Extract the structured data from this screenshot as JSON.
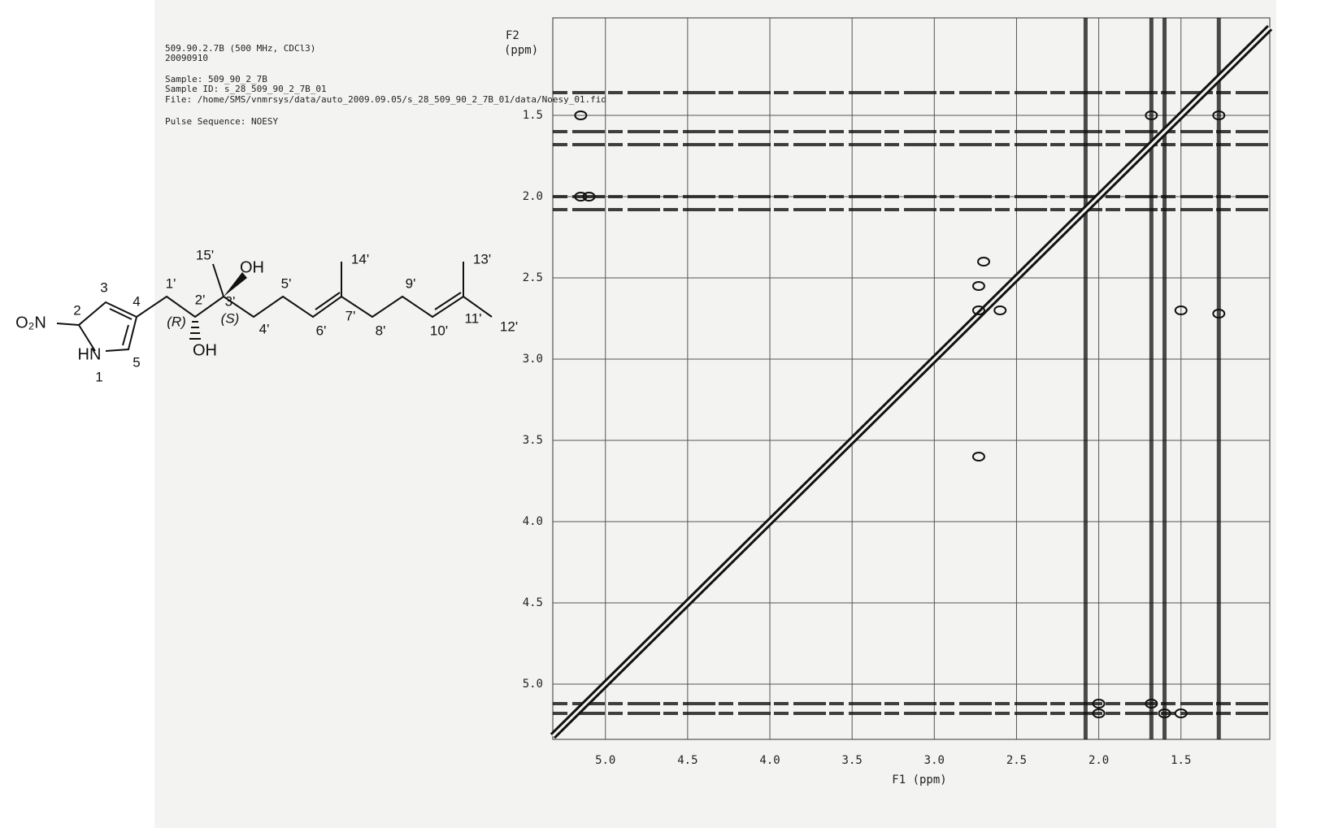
{
  "chart_data": {
    "type": "noesy",
    "header": [
      "509.90.2.7B (500 MHz, CDCl3)",
      "20090910",
      "Sample: 509_90_2_7B",
      "Sample ID: s_28_509_90_2_7B_01",
      "File: /home/SMS/vnmrsys/data/auto_2009.09.05/s_28_509_90_2_7B_01/data/Noesy_01.fid",
      "Pulse Sequence: NOESY"
    ],
    "y_label": [
      "F2",
      "(ppm)"
    ],
    "x_label": "F1 (ppm)",
    "xlim": [
      5.32,
      0.96
    ],
    "ylim": [
      0.9,
      5.34
    ],
    "xticks": [
      {
        "value": 5,
        "label": "5.0"
      },
      4.5,
      {
        "value": 4,
        "label": "4.0"
      },
      3.5,
      {
        "value": 3,
        "label": "3.0"
      },
      2.5,
      {
        "value": 2,
        "label": "2.0"
      },
      1.5
    ],
    "yticks": [
      1.5,
      {
        "value": 2,
        "label": "2.0"
      },
      2.5,
      {
        "value": 3,
        "label": "3.0"
      },
      3.5,
      {
        "value": 4,
        "label": "4.0"
      },
      4.5,
      {
        "value": 5,
        "label": "5.0"
      }
    ],
    "grid": true,
    "color": "#111111",
    "streak_rows": [
      1.36,
      1.6,
      1.68,
      2.0,
      2.08,
      5.12,
      5.18
    ],
    "streak_columns": [
      2.08,
      1.68,
      1.6,
      1.27
    ],
    "cross_peaks": {
      "x": [
        5.15,
        5.15,
        5.1,
        2.73,
        2.73,
        2.6,
        2.7,
        2.0,
        2.0,
        1.68,
        1.6,
        1.5,
        1.27,
        1.27,
        1.68,
        2.73,
        1.5
      ],
      "y": [
        1.5,
        2.0,
        2.0,
        2.55,
        2.7,
        2.7,
        2.4,
        5.12,
        5.18,
        5.12,
        5.18,
        5.18,
        2.72,
        1.5,
        1.5,
        3.6,
        2.7
      ]
    },
    "structure_labels": [
      "O₂N",
      "2",
      "3",
      "4",
      "5",
      "1",
      "HN",
      "1'",
      "2'",
      "(R)",
      "OH",
      "15'",
      "OH",
      "3'",
      "(S)",
      "4'",
      "5'",
      "6'",
      "7'",
      "14'",
      "8'",
      "9'",
      "10'",
      "11'",
      "13'",
      "12'"
    ]
  }
}
